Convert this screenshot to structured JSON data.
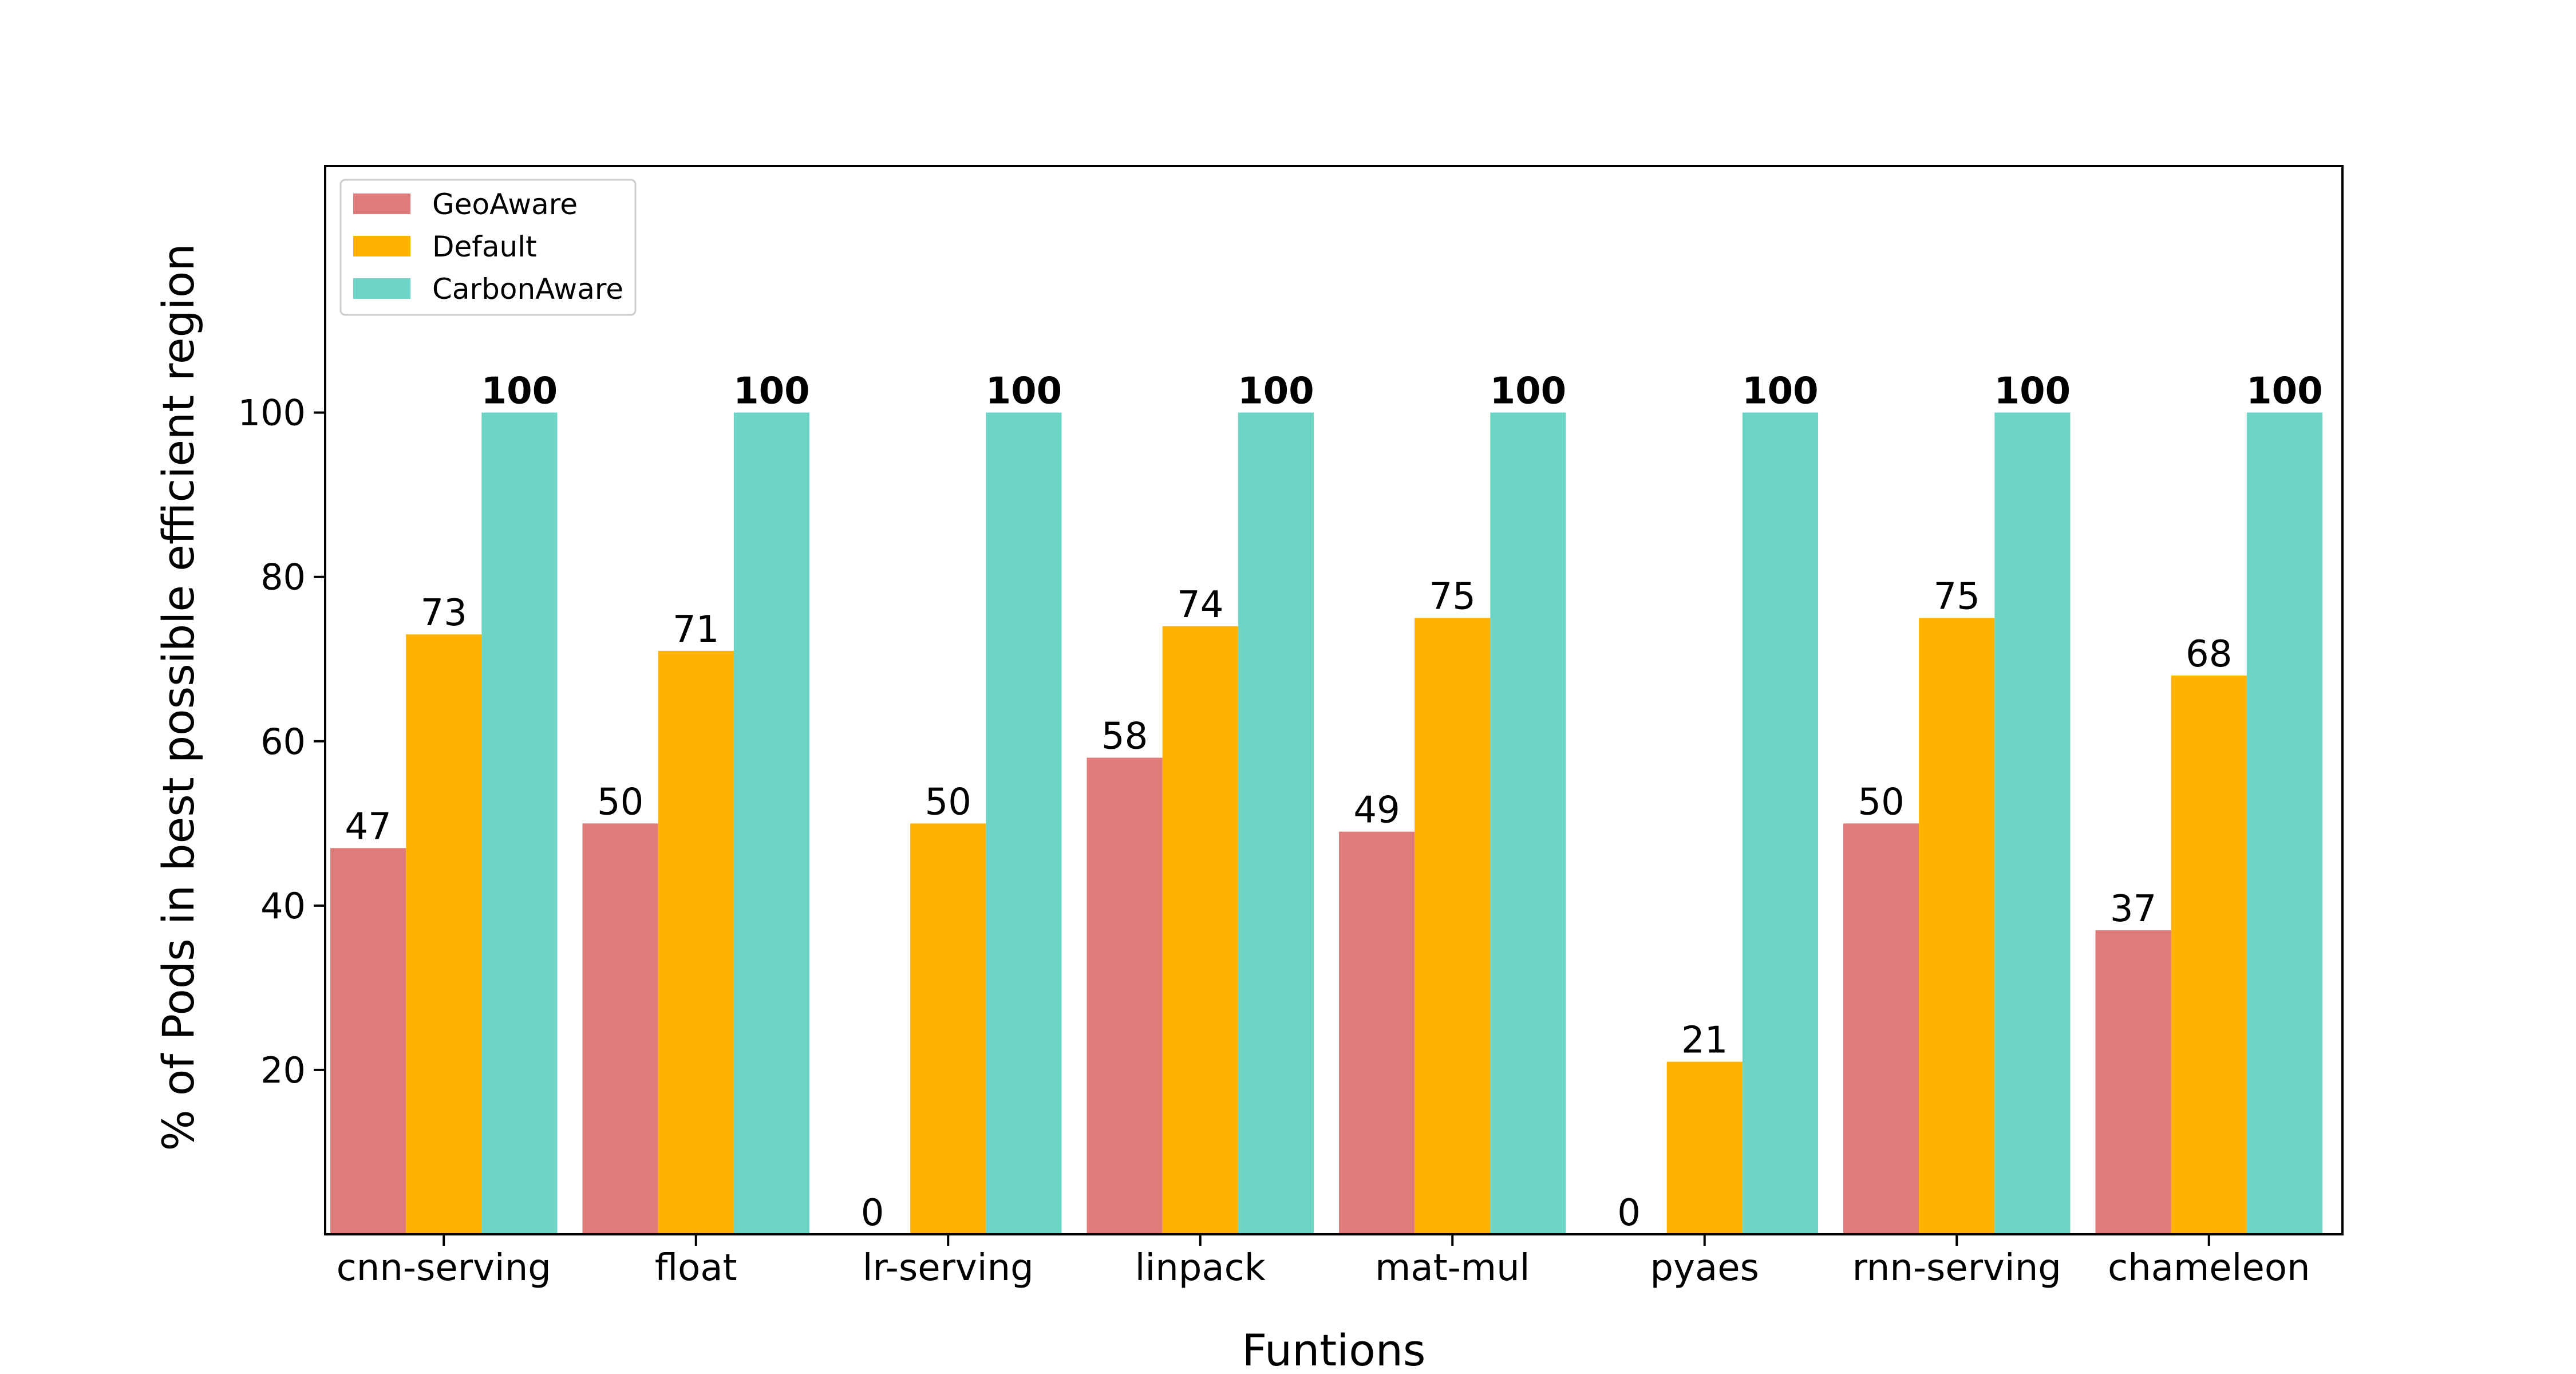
{
  "chart_data": {
    "type": "bar",
    "title": "",
    "xlabel": "Funtions",
    "ylabel": "% of Pods in best possible efficient region",
    "categories": [
      "cnn-serving",
      "float",
      "lr-serving",
      "linpack",
      "mat-mul",
      "pyaes",
      "rnn-serving",
      "chameleon"
    ],
    "series": [
      {
        "name": "GeoAware",
        "color": "#e07b7b",
        "values": [
          47,
          50,
          0,
          58,
          49,
          0,
          50,
          37
        ],
        "label_weight": "normal"
      },
      {
        "name": "Default",
        "color": "#ffb300",
        "values": [
          73,
          71,
          50,
          74,
          75,
          21,
          75,
          68
        ],
        "label_weight": "normal"
      },
      {
        "name": "CarbonAware",
        "color": "#6dd5c5",
        "values": [
          100,
          100,
          100,
          100,
          100,
          100,
          100,
          100
        ],
        "label_weight": "bold"
      }
    ],
    "yticks": [
      20,
      40,
      60,
      80,
      100
    ],
    "ylim": [
      0,
      130
    ],
    "grid": false,
    "legend_position": "top-left"
  }
}
